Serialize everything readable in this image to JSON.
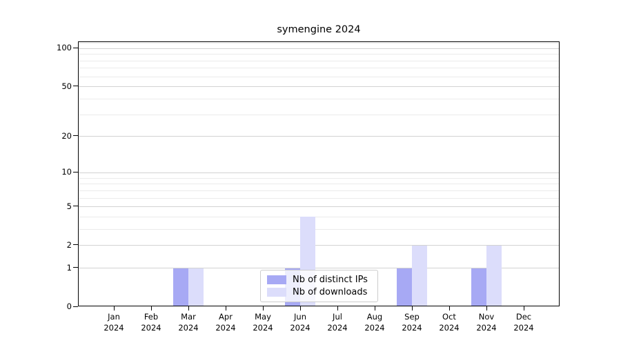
{
  "chart_data": {
    "type": "bar",
    "title": "symengine 2024",
    "categories": [
      "Jan",
      "Feb",
      "Mar",
      "Apr",
      "May",
      "Jun",
      "Jul",
      "Aug",
      "Sep",
      "Oct",
      "Nov",
      "Dec"
    ],
    "year_label": "2024",
    "series": [
      {
        "name": "Nb of distinct IPs",
        "color": "#a7a9f4",
        "values": [
          0,
          0,
          1,
          0,
          0,
          1,
          0,
          0,
          1,
          0,
          1,
          0
        ]
      },
      {
        "name": "Nb of downloads",
        "color": "#dcddfb",
        "values": [
          0,
          0,
          1,
          0,
          0,
          4,
          0,
          0,
          2,
          0,
          2,
          0
        ]
      }
    ],
    "y_axis": {
      "ticks": [
        0,
        1,
        2,
        5,
        10,
        20,
        50,
        100
      ],
      "minor_ticks": [
        3,
        4,
        6,
        7,
        8,
        9,
        30,
        40,
        60,
        70,
        80,
        90,
        110
      ],
      "scale": "log1p",
      "ylim": [
        0,
        112.3
      ]
    },
    "xlabel": "",
    "ylabel": "",
    "grid": "horizontal",
    "legend_position": "lower center"
  },
  "colors": {
    "major_grid": "#d2d2d2",
    "minor_grid": "#ebebeb",
    "spine": "#000000",
    "background": "#ffffff"
  }
}
